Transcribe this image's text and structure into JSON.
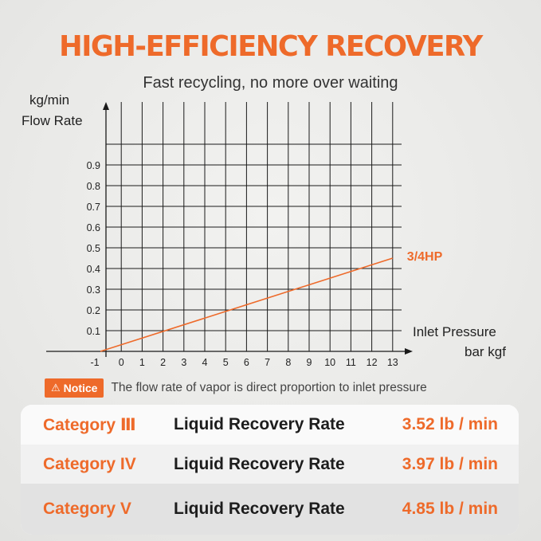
{
  "header": {
    "title": "HIGH-EFFICIENCY RECOVERY",
    "subtitle": "Fast recycling, no more over waiting"
  },
  "colors": {
    "accent": "#ee6a2a",
    "grid": "#1a1a1a",
    "text": "#222222"
  },
  "chart_data": {
    "type": "line",
    "ylabel_unit": "kg/min",
    "ylabel": "Flow Rate",
    "xlabel": "Inlet Pressure",
    "xlabel_unit": "bar kgf",
    "x_ticks": [
      "-1",
      "0",
      "1",
      "2",
      "3",
      "4",
      "5",
      "6",
      "7",
      "8",
      "9",
      "10",
      "11",
      "12",
      "13"
    ],
    "y_ticks": [
      "0.1",
      "0.2",
      "0.3",
      "0.4",
      "0.5",
      "0.6",
      "0.7",
      "0.8",
      "0.9"
    ],
    "xlim": [
      -1,
      13
    ],
    "ylim": [
      0,
      1.0
    ],
    "grid": true,
    "series": [
      {
        "name": "3/4HP",
        "x": [
          -1,
          13
        ],
        "y": [
          0,
          0.45
        ]
      }
    ]
  },
  "notice": {
    "badge_icon": "warning-icon",
    "badge_label": "Notice",
    "text": "The flow rate of vapor is direct proportion to inlet pressure"
  },
  "table": {
    "rows": [
      {
        "category": "Category Ⅲ",
        "label": "Liquid Recovery Rate",
        "rate": "3.52 lb / min"
      },
      {
        "category": "Category IV",
        "label": "Liquid Recovery Rate",
        "rate": "3.97 lb / min"
      },
      {
        "category": "Category V",
        "label": "Liquid Recovery Rate",
        "rate": "4.85 lb / min"
      }
    ]
  }
}
